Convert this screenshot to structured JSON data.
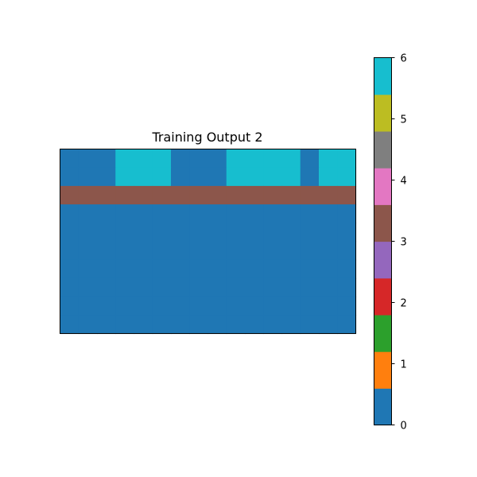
{
  "chart_data": {
    "type": "heatmap",
    "title": "Training Output 2",
    "xlabel": "",
    "ylabel": "",
    "grid": false,
    "axis_ticks_visible": false,
    "rows": 10,
    "cols": 16,
    "values": [
      [
        0,
        0,
        0,
        6,
        6,
        6,
        0,
        0,
        0,
        6,
        6,
        6,
        6,
        0,
        6,
        6
      ],
      [
        0,
        0,
        0,
        6,
        6,
        6,
        0,
        0,
        0,
        6,
        6,
        6,
        6,
        0,
        6,
        6
      ],
      [
        3,
        3,
        3,
        3,
        3,
        3,
        3,
        3,
        3,
        3,
        3,
        3,
        3,
        3,
        3,
        3
      ],
      [
        0,
        0,
        0,
        0,
        0,
        0,
        0,
        0,
        0,
        0,
        0,
        0,
        0,
        0,
        0,
        0
      ],
      [
        0,
        0,
        0,
        0,
        0,
        0,
        0,
        0,
        0,
        0,
        0,
        0,
        0,
        0,
        0,
        0
      ],
      [
        0,
        0,
        0,
        0,
        0,
        0,
        0,
        0,
        0,
        0,
        0,
        0,
        0,
        0,
        0,
        0
      ],
      [
        0,
        0,
        0,
        0,
        0,
        0,
        0,
        0,
        0,
        0,
        0,
        0,
        0,
        0,
        0,
        0
      ],
      [
        0,
        0,
        0,
        0,
        0,
        0,
        0,
        0,
        0,
        0,
        0,
        0,
        0,
        0,
        0,
        0
      ],
      [
        0,
        0,
        0,
        0,
        0,
        0,
        0,
        0,
        0,
        0,
        0,
        0,
        0,
        0,
        0,
        0
      ],
      [
        0,
        0,
        0,
        0,
        0,
        0,
        0,
        0,
        0,
        0,
        0,
        0,
        0,
        0,
        0,
        0
      ]
    ],
    "colorbar": {
      "min": 0,
      "max": 6,
      "ticks": [
        "0",
        "1",
        "2",
        "3",
        "4",
        "5",
        "6"
      ],
      "colors": [
        "#1f77b4",
        "#ff7f0e",
        "#2ca02c",
        "#d62728",
        "#9467bd",
        "#8c564b",
        "#e377c2",
        "#7f7f7f",
        "#bcbd22",
        "#17becf"
      ]
    }
  }
}
